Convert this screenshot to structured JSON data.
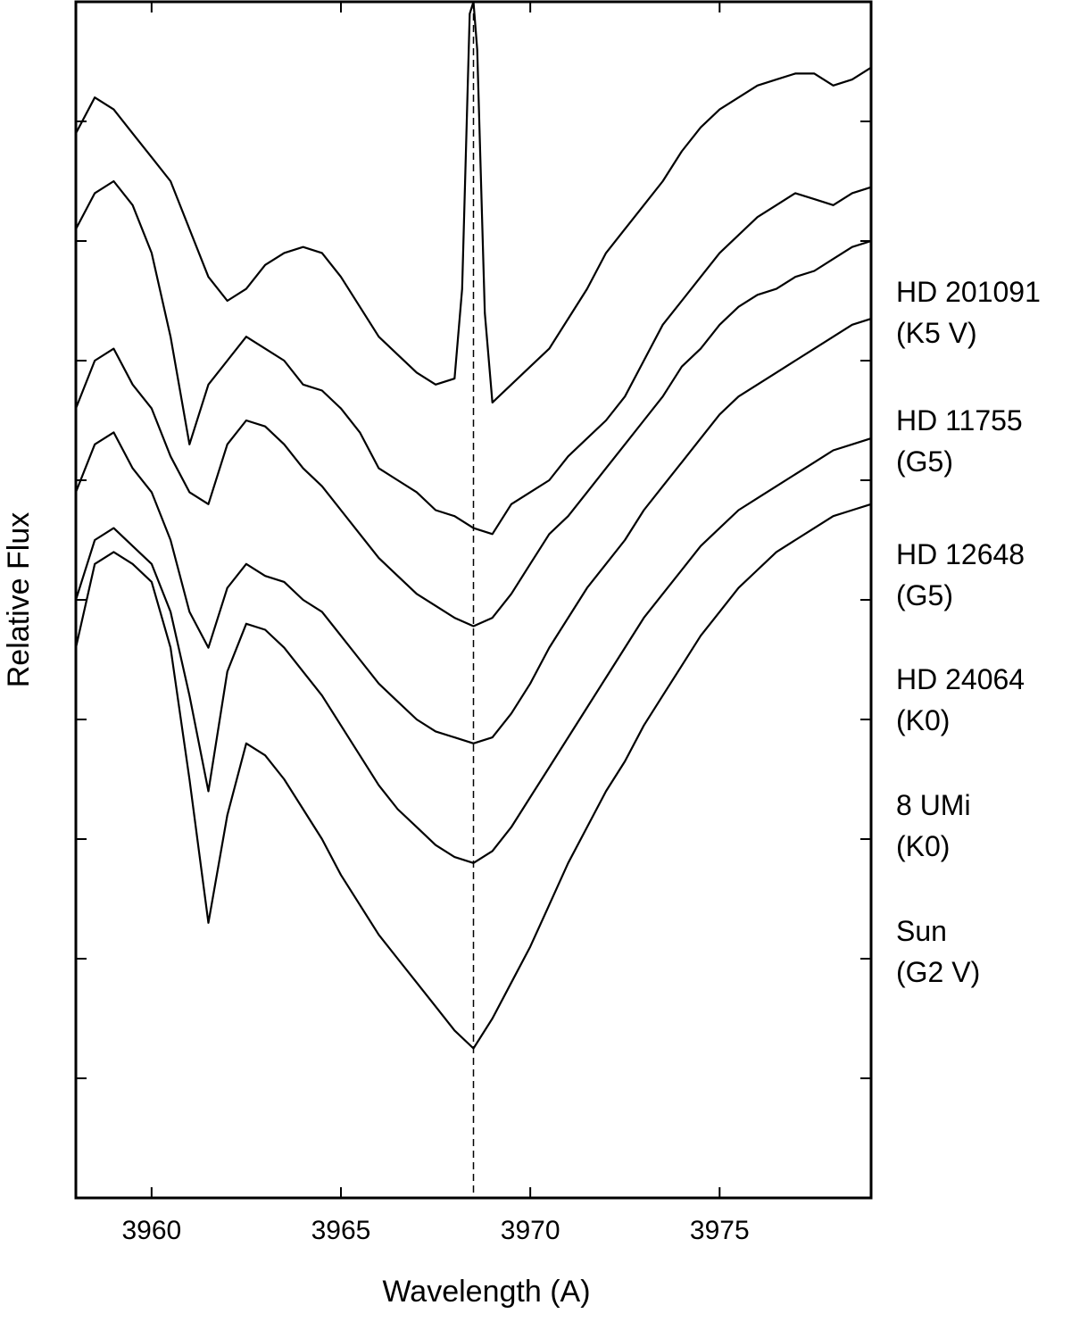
{
  "chart_data": {
    "type": "line",
    "title": "",
    "xlabel": "Wavelength (A)",
    "ylabel": "Relative Flux",
    "xlim": [
      3958.0,
      3979.0
    ],
    "ylim": [
      0,
      10
    ],
    "x_ticks": [
      3960,
      3965,
      3970,
      3975
    ],
    "x_tick_labels": [
      "3960",
      "3965",
      "3970",
      "3975"
    ],
    "y_tick_labels_shown": false,
    "grid": false,
    "legend": "none",
    "reference_line": {
      "x": 3968.5,
      "style": "dashed"
    },
    "line_color": "#000000",
    "series": [
      {
        "name": "HD 201091",
        "type_label": "(K5 V)",
        "x": [
          3958.0,
          3958.5,
          3959.0,
          3959.5,
          3960.0,
          3960.5,
          3961.0,
          3961.5,
          3962.0,
          3962.5,
          3963.0,
          3963.5,
          3964.0,
          3964.5,
          3965.0,
          3965.5,
          3966.0,
          3966.5,
          3967.0,
          3967.5,
          3968.0,
          3968.2,
          3968.4,
          3968.5,
          3968.6,
          3968.8,
          3969.0,
          3969.5,
          3970.0,
          3970.5,
          3971.0,
          3971.5,
          3972.0,
          3972.5,
          3973.0,
          3973.5,
          3974.0,
          3974.5,
          3975.0,
          3975.5,
          3976.0,
          3976.5,
          3977.0,
          3977.5,
          3978.0,
          3978.5,
          3979.0
        ],
        "y": [
          8.9,
          9.2,
          9.1,
          8.9,
          8.7,
          8.5,
          8.1,
          7.7,
          7.5,
          7.6,
          7.8,
          7.9,
          7.95,
          7.9,
          7.7,
          7.45,
          7.2,
          7.05,
          6.9,
          6.8,
          6.85,
          7.6,
          9.9,
          10.0,
          9.6,
          7.4,
          6.65,
          6.8,
          6.95,
          7.1,
          7.35,
          7.6,
          7.9,
          8.1,
          8.3,
          8.5,
          8.75,
          8.95,
          9.1,
          9.2,
          9.3,
          9.35,
          9.4,
          9.4,
          9.3,
          9.35,
          9.45
        ]
      },
      {
        "name": "HD 11755",
        "type_label": "(G5)",
        "x": [
          3958.0,
          3958.5,
          3959.0,
          3959.5,
          3960.0,
          3960.5,
          3961.0,
          3961.5,
          3962.0,
          3962.5,
          3963.0,
          3963.5,
          3964.0,
          3964.5,
          3965.0,
          3965.5,
          3966.0,
          3966.5,
          3967.0,
          3967.5,
          3968.0,
          3968.5,
          3969.0,
          3969.5,
          3970.0,
          3970.5,
          3971.0,
          3971.5,
          3972.0,
          3972.5,
          3973.0,
          3973.5,
          3974.0,
          3974.5,
          3975.0,
          3975.5,
          3976.0,
          3976.5,
          3977.0,
          3977.5,
          3978.0,
          3978.5,
          3979.0
        ],
        "y": [
          8.1,
          8.4,
          8.5,
          8.3,
          7.9,
          7.2,
          6.3,
          6.8,
          7.0,
          7.2,
          7.1,
          7.0,
          6.8,
          6.75,
          6.6,
          6.4,
          6.1,
          6.0,
          5.9,
          5.75,
          5.7,
          5.6,
          5.55,
          5.8,
          5.9,
          6.0,
          6.2,
          6.35,
          6.5,
          6.7,
          7.0,
          7.3,
          7.5,
          7.7,
          7.9,
          8.05,
          8.2,
          8.3,
          8.4,
          8.35,
          8.3,
          8.4,
          8.45
        ]
      },
      {
        "name": "HD 12648",
        "type_label": "(G5)",
        "x": [
          3958.0,
          3958.5,
          3959.0,
          3959.5,
          3960.0,
          3960.5,
          3961.0,
          3961.5,
          3962.0,
          3962.5,
          3963.0,
          3963.5,
          3964.0,
          3964.5,
          3965.0,
          3965.5,
          3966.0,
          3966.5,
          3967.0,
          3967.5,
          3968.0,
          3968.5,
          3969.0,
          3969.5,
          3970.0,
          3970.5,
          3971.0,
          3971.5,
          3972.0,
          3972.5,
          3973.0,
          3973.5,
          3974.0,
          3974.5,
          3975.0,
          3975.5,
          3976.0,
          3976.5,
          3977.0,
          3977.5,
          3978.0,
          3978.5,
          3979.0
        ],
        "y": [
          6.6,
          7.0,
          7.1,
          6.8,
          6.6,
          6.2,
          5.9,
          5.8,
          6.3,
          6.5,
          6.45,
          6.3,
          6.1,
          5.95,
          5.75,
          5.55,
          5.35,
          5.2,
          5.05,
          4.95,
          4.85,
          4.78,
          4.85,
          5.05,
          5.3,
          5.55,
          5.7,
          5.9,
          6.1,
          6.3,
          6.5,
          6.7,
          6.95,
          7.1,
          7.3,
          7.45,
          7.55,
          7.6,
          7.7,
          7.75,
          7.85,
          7.95,
          8.0
        ]
      },
      {
        "name": "HD 24064",
        "type_label": "(K0)",
        "x": [
          3958.0,
          3958.5,
          3959.0,
          3959.5,
          3960.0,
          3960.5,
          3961.0,
          3961.5,
          3962.0,
          3962.5,
          3963.0,
          3963.5,
          3964.0,
          3964.5,
          3965.0,
          3965.5,
          3966.0,
          3966.5,
          3967.0,
          3967.5,
          3968.0,
          3968.5,
          3969.0,
          3969.5,
          3970.0,
          3970.5,
          3971.0,
          3971.5,
          3972.0,
          3972.5,
          3973.0,
          3973.5,
          3974.0,
          3974.5,
          3975.0,
          3975.5,
          3976.0,
          3976.5,
          3977.0,
          3977.5,
          3978.0,
          3978.5,
          3979.0
        ],
        "y": [
          5.9,
          6.3,
          6.4,
          6.1,
          5.9,
          5.5,
          4.9,
          4.6,
          5.1,
          5.3,
          5.2,
          5.15,
          5.0,
          4.9,
          4.7,
          4.5,
          4.3,
          4.15,
          4.0,
          3.9,
          3.85,
          3.8,
          3.85,
          4.05,
          4.3,
          4.6,
          4.85,
          5.1,
          5.3,
          5.5,
          5.75,
          5.95,
          6.15,
          6.35,
          6.55,
          6.7,
          6.8,
          6.9,
          7.0,
          7.1,
          7.2,
          7.3,
          7.35
        ]
      },
      {
        "name": "8 UMi",
        "type_label": "(K0)",
        "x": [
          3958.0,
          3958.5,
          3959.0,
          3959.5,
          3960.0,
          3960.5,
          3961.0,
          3961.5,
          3962.0,
          3962.5,
          3963.0,
          3963.5,
          3964.0,
          3964.5,
          3965.0,
          3965.5,
          3966.0,
          3966.5,
          3967.0,
          3967.5,
          3968.0,
          3968.5,
          3969.0,
          3969.5,
          3970.0,
          3970.5,
          3971.0,
          3971.5,
          3972.0,
          3972.5,
          3973.0,
          3973.5,
          3974.0,
          3974.5,
          3975.0,
          3975.5,
          3976.0,
          3976.5,
          3977.0,
          3977.5,
          3978.0,
          3978.5,
          3979.0
        ],
        "y": [
          5.0,
          5.5,
          5.6,
          5.45,
          5.3,
          4.9,
          4.2,
          3.4,
          4.4,
          4.8,
          4.75,
          4.6,
          4.4,
          4.2,
          3.95,
          3.7,
          3.45,
          3.25,
          3.1,
          2.95,
          2.85,
          2.8,
          2.9,
          3.1,
          3.35,
          3.6,
          3.85,
          4.1,
          4.35,
          4.6,
          4.85,
          5.05,
          5.25,
          5.45,
          5.6,
          5.75,
          5.85,
          5.95,
          6.05,
          6.15,
          6.25,
          6.3,
          6.35
        ]
      },
      {
        "name": "Sun",
        "type_label": "(G2 V)",
        "x": [
          3958.0,
          3958.5,
          3959.0,
          3959.5,
          3960.0,
          3960.5,
          3961.0,
          3961.5,
          3962.0,
          3962.5,
          3963.0,
          3963.5,
          3964.0,
          3964.5,
          3965.0,
          3965.5,
          3966.0,
          3966.5,
          3967.0,
          3967.5,
          3968.0,
          3968.5,
          3969.0,
          3969.5,
          3970.0,
          3970.5,
          3971.0,
          3971.5,
          3972.0,
          3972.5,
          3973.0,
          3973.5,
          3974.0,
          3974.5,
          3975.0,
          3975.5,
          3976.0,
          3976.5,
          3977.0,
          3977.5,
          3978.0,
          3978.5,
          3979.0
        ],
        "y": [
          4.6,
          5.3,
          5.4,
          5.3,
          5.15,
          4.6,
          3.5,
          2.3,
          3.2,
          3.8,
          3.7,
          3.5,
          3.25,
          3.0,
          2.7,
          2.45,
          2.2,
          2.0,
          1.8,
          1.6,
          1.4,
          1.25,
          1.5,
          1.8,
          2.1,
          2.45,
          2.8,
          3.1,
          3.4,
          3.65,
          3.95,
          4.2,
          4.45,
          4.7,
          4.9,
          5.1,
          5.25,
          5.4,
          5.5,
          5.6,
          5.7,
          5.75,
          5.8
        ]
      }
    ]
  }
}
